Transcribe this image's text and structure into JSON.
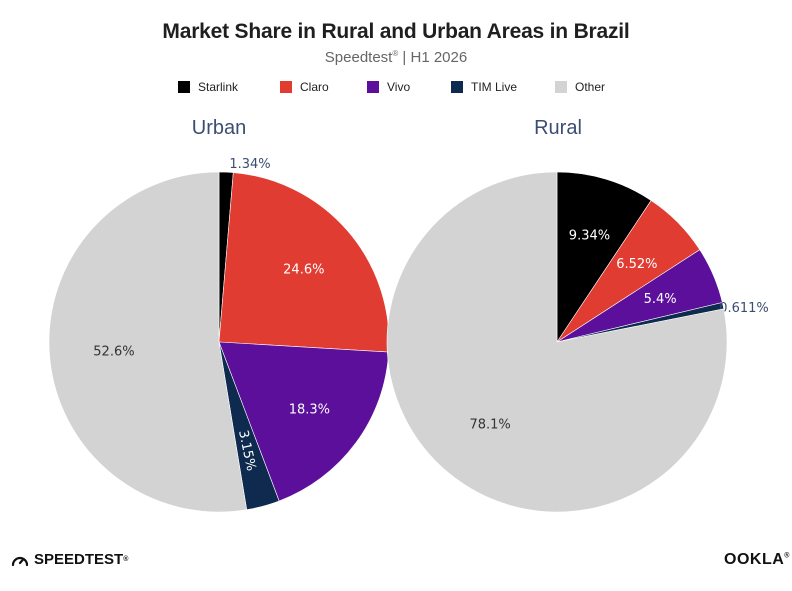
{
  "header": {
    "title": "Market Share in Rural and Urban Areas in Brazil",
    "subtitle_brand": "Speedtest",
    "subtitle_mark": "®",
    "subtitle_rest": " | H1 2026"
  },
  "legend": [
    {
      "label": "Starlink",
      "color": "#000000"
    },
    {
      "label": "Claro",
      "color": "#e03c31"
    },
    {
      "label": "Vivo",
      "color": "#5b0f9b"
    },
    {
      "label": "TIM Live",
      "color": "#0e2a4e"
    },
    {
      "label": "Other",
      "color": "#d3d3d3"
    }
  ],
  "chart_data": [
    {
      "type": "pie",
      "title": "Urban",
      "slices": [
        {
          "name": "Starlink",
          "value": 1.34,
          "label": "1.34%",
          "color": "#000000"
        },
        {
          "name": "Claro",
          "value": 24.6,
          "label": "24.6%",
          "color": "#e03c31"
        },
        {
          "name": "Vivo",
          "value": 18.3,
          "label": "18.3%",
          "color": "#5b0f9b"
        },
        {
          "name": "TIM Live",
          "value": 3.15,
          "label": "3.15%",
          "color": "#0e2a4e"
        },
        {
          "name": "Other",
          "value": 52.6,
          "label": "52.6%",
          "color": "#d3d3d3"
        }
      ]
    },
    {
      "type": "pie",
      "title": "Rural",
      "slices": [
        {
          "name": "Starlink",
          "value": 9.34,
          "label": "9.34%",
          "color": "#000000"
        },
        {
          "name": "Claro",
          "value": 6.52,
          "label": "6.52%",
          "color": "#e03c31"
        },
        {
          "name": "Vivo",
          "value": 5.4,
          "label": "5.4%",
          "color": "#5b0f9b"
        },
        {
          "name": "TIM Live",
          "value": 0.611,
          "label": "0.611%",
          "color": "#0e2a4e"
        },
        {
          "name": "Other",
          "value": 78.1,
          "label": "78.1%",
          "color": "#d3d3d3"
        }
      ]
    }
  ],
  "footer": {
    "brand_left": "SPEEDTEST",
    "brand_left_mark": "®",
    "brand_right": "OOKLA",
    "brand_right_mark": "®"
  }
}
